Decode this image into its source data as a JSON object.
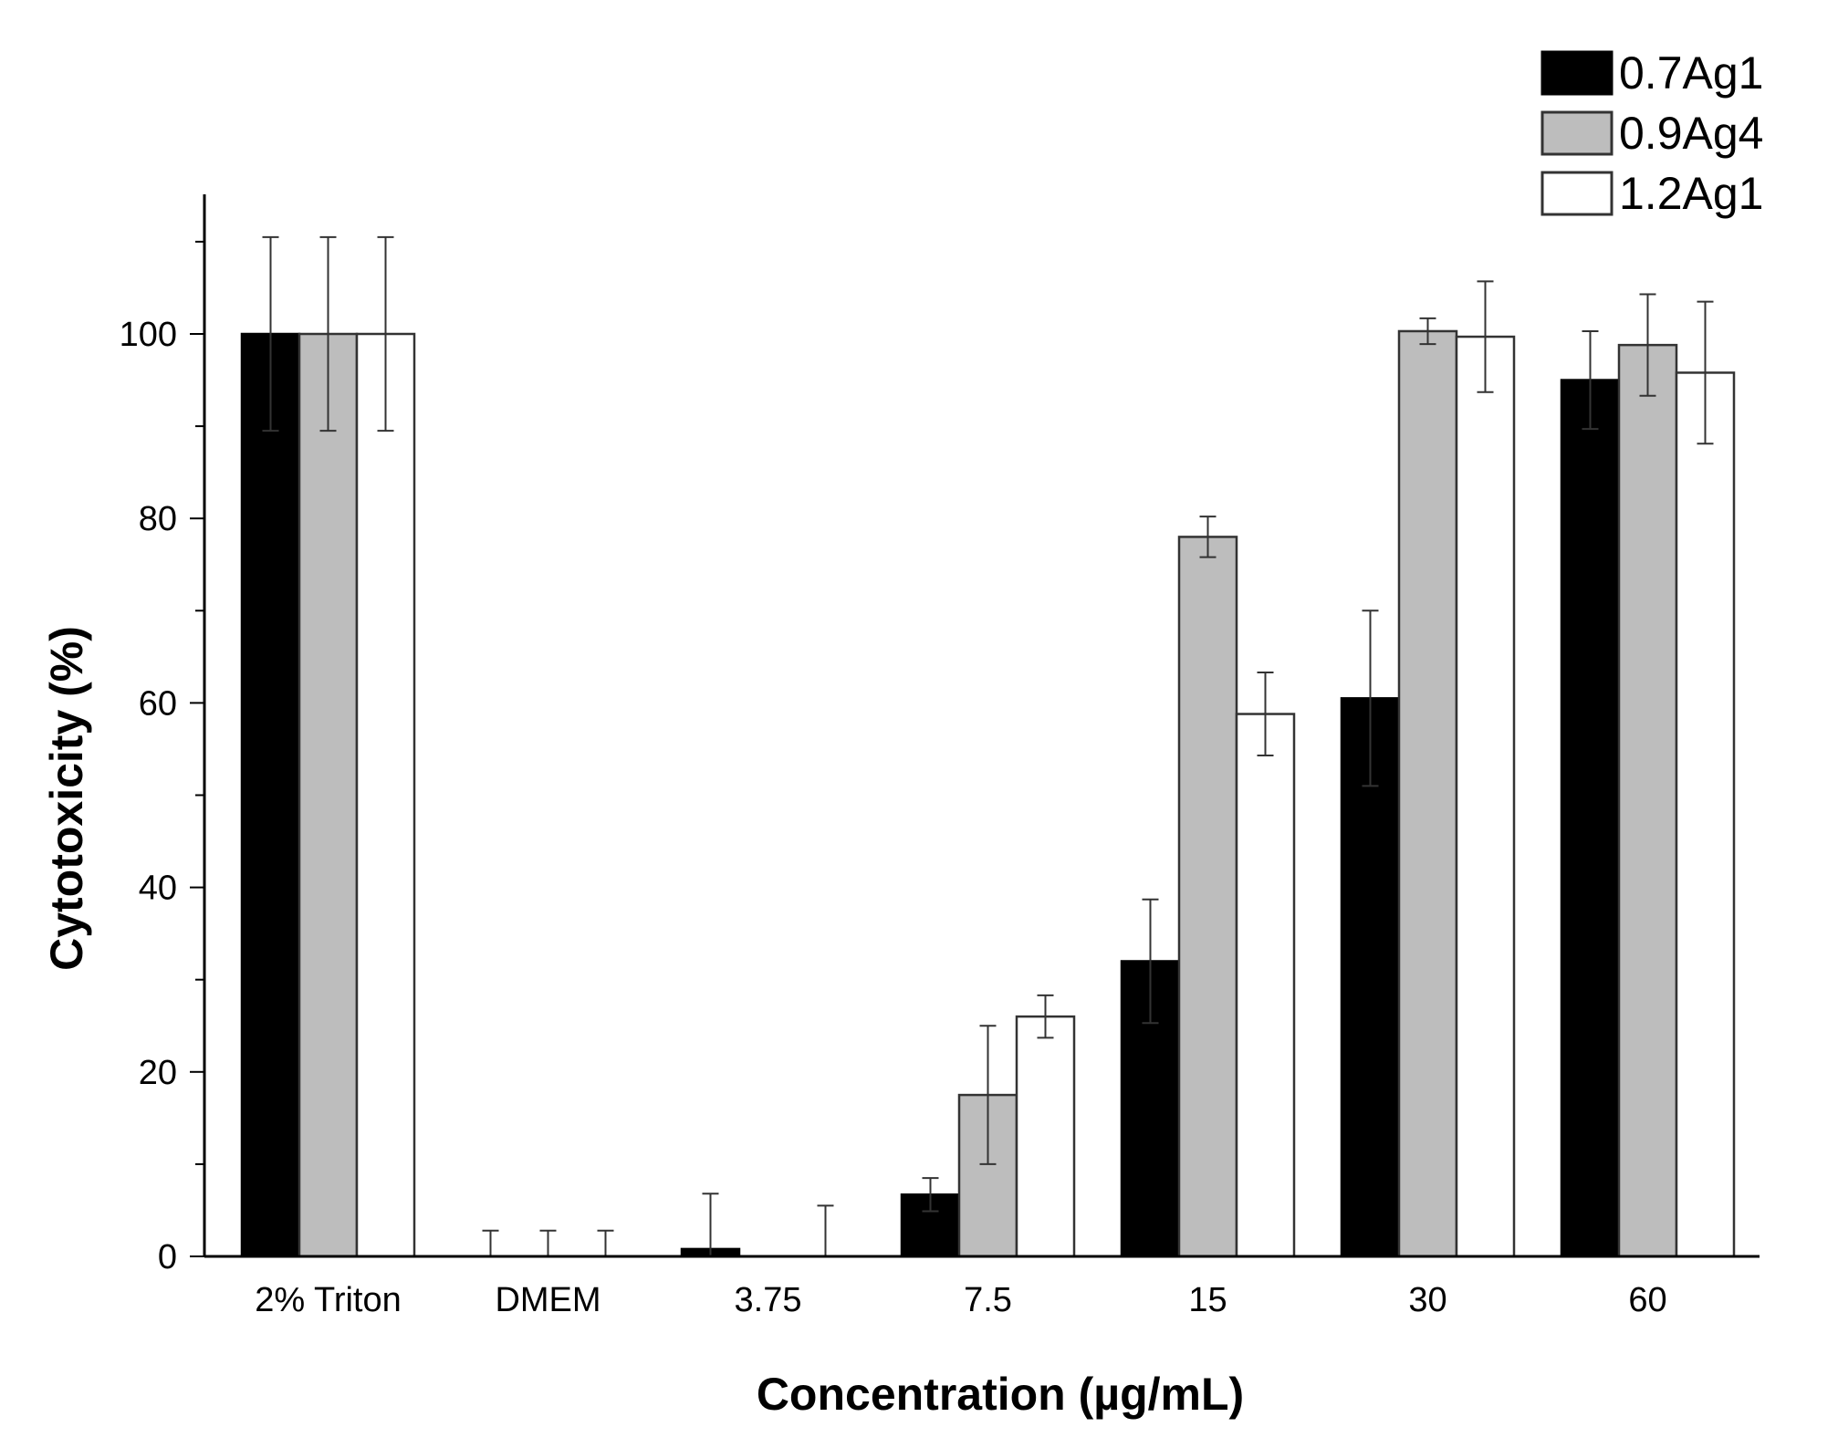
{
  "chart_data": {
    "type": "bar",
    "title": "",
    "xlabel": "Concentration (µg/mL)",
    "ylabel": "Cytotoxicity (%)",
    "ylim": [
      0,
      115
    ],
    "yticks": [
      0,
      20,
      40,
      60,
      80,
      100
    ],
    "grid": false,
    "legend_position": "top-right",
    "categories": [
      "2% Triton",
      "DMEM",
      "3.75",
      "7.5",
      "15",
      "30",
      "60"
    ],
    "series": [
      {
        "name": "0.7Ag1",
        "color": "#000000",
        "values": [
          100,
          0,
          0.8,
          6.7,
          32,
          60.5,
          95
        ],
        "errors": [
          10.5,
          2.8,
          6.0,
          1.8,
          6.7,
          9.5,
          5.3
        ]
      },
      {
        "name": "0.9Ag4",
        "color": "#bdbdbd",
        "values": [
          100,
          0,
          0,
          17.5,
          78,
          100.3,
          98.8
        ],
        "errors": [
          10.5,
          2.8,
          0,
          7.5,
          2.2,
          1.4,
          5.5
        ]
      },
      {
        "name": "1.2Ag1",
        "color": "#ffffff",
        "values": [
          100,
          0,
          0,
          26,
          58.8,
          99.7,
          95.8
        ],
        "errors": [
          10.5,
          2.8,
          5.5,
          2.3,
          4.5,
          6.0,
          7.7
        ]
      }
    ]
  }
}
